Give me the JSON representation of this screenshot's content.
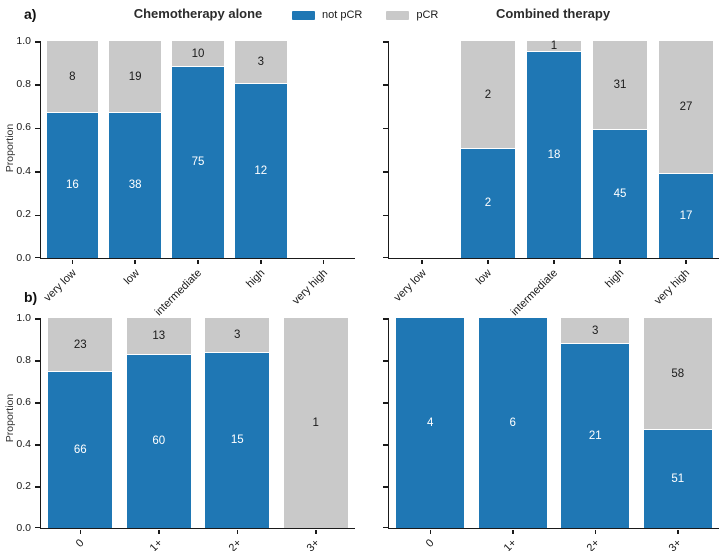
{
  "figure": {
    "panel_label_a": "a)",
    "panel_label_b": "b)",
    "ylabel": "Proportion",
    "legend": {
      "items": [
        {
          "label": "not pCR",
          "color": "#1f77b4"
        },
        {
          "label": "pCR",
          "color": "#c9c9c9"
        }
      ]
    },
    "colors": {
      "not_pcr": "#1f77b4",
      "pcr": "#c9c9c9",
      "axis": "#1a1a1a",
      "label_on_blue": "#ffffff",
      "label_on_gray": "#1a1a1a"
    }
  },
  "chart_data": [
    {
      "type": "bar",
      "stacked": true,
      "panel": "a",
      "position": "left",
      "title": "Chemotherapy alone",
      "categories": [
        "very low",
        "low",
        "intermediate",
        "high",
        "very high"
      ],
      "series": [
        {
          "name": "not pCR",
          "color": "#1f77b4",
          "values": [
            16,
            38,
            75,
            12,
            null
          ]
        },
        {
          "name": "pCR",
          "color": "#c9c9c9",
          "values": [
            8,
            19,
            10,
            3,
            null
          ]
        }
      ],
      "proportion_not_pcr": [
        0.67,
        0.67,
        0.88,
        0.8,
        null
      ],
      "ylabel": "Proportion",
      "ylim": [
        0,
        1
      ],
      "yticks": [
        0.0,
        0.2,
        0.4,
        0.6,
        0.8,
        1.0
      ],
      "ytick_labels_visible": true,
      "grid": false,
      "legend_position": "top-center-shared"
    },
    {
      "type": "bar",
      "stacked": true,
      "panel": "a",
      "position": "right",
      "title": "Combined therapy",
      "categories": [
        "very low",
        "low",
        "intermediate",
        "high",
        "very high"
      ],
      "series": [
        {
          "name": "not pCR",
          "color": "#1f77b4",
          "values": [
            null,
            2,
            18,
            45,
            17
          ]
        },
        {
          "name": "pCR",
          "color": "#c9c9c9",
          "values": [
            null,
            2,
            1,
            31,
            27
          ]
        }
      ],
      "proportion_not_pcr": [
        null,
        0.5,
        0.95,
        0.59,
        0.39
      ],
      "ylabel": "",
      "ylim": [
        0,
        1
      ],
      "yticks": [
        0.0,
        0.2,
        0.4,
        0.6,
        0.8,
        1.0
      ],
      "ytick_labels_visible": false,
      "grid": false
    },
    {
      "type": "bar",
      "stacked": true,
      "panel": "b",
      "position": "left",
      "title": "",
      "categories": [
        "0",
        "1+",
        "2+",
        "3+"
      ],
      "series": [
        {
          "name": "not pCR",
          "color": "#1f77b4",
          "values": [
            66,
            60,
            15,
            0
          ]
        },
        {
          "name": "pCR",
          "color": "#c9c9c9",
          "values": [
            23,
            13,
            3,
            1
          ]
        }
      ],
      "proportion_not_pcr": [
        0.74,
        0.82,
        0.83,
        0.0
      ],
      "ylabel": "Proportion",
      "ylim": [
        0,
        1
      ],
      "yticks": [
        0.0,
        0.2,
        0.4,
        0.6,
        0.8,
        1.0
      ],
      "ytick_labels_visible": true,
      "grid": false
    },
    {
      "type": "bar",
      "stacked": true,
      "panel": "b",
      "position": "right",
      "title": "",
      "categories": [
        "0",
        "1+",
        "2+",
        "3+"
      ],
      "series": [
        {
          "name": "not pCR",
          "color": "#1f77b4",
          "values": [
            4,
            6,
            21,
            51
          ]
        },
        {
          "name": "pCR",
          "color": "#c9c9c9",
          "values": [
            0,
            0,
            3,
            58
          ]
        }
      ],
      "proportion_not_pcr": [
        1.0,
        1.0,
        0.88,
        0.47
      ],
      "ylabel": "",
      "ylim": [
        0,
        1
      ],
      "yticks": [
        0.0,
        0.2,
        0.4,
        0.6,
        0.8,
        1.0
      ],
      "ytick_labels_visible": false,
      "grid": false
    }
  ]
}
